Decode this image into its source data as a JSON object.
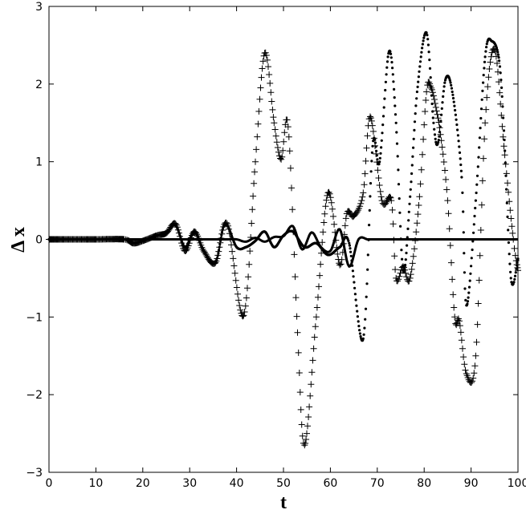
{
  "chart_data": {
    "type": "line",
    "title": "",
    "xlabel": "t",
    "ylabel": "Δ x",
    "xlim": [
      0,
      100
    ],
    "ylim": [
      -3,
      3
    ],
    "xticks": [
      0,
      10,
      20,
      30,
      40,
      50,
      60,
      70,
      80,
      90,
      100
    ],
    "yticks": [
      -3,
      -2,
      -1,
      0,
      1,
      2,
      3
    ],
    "grid": false,
    "legend": "none",
    "series": [
      {
        "style": "solid",
        "color": "#000000",
        "x": [
          0,
          10,
          15,
          18,
          20,
          22,
          24,
          26,
          28,
          30,
          32,
          34,
          36,
          38,
          40,
          42,
          44,
          46,
          48,
          50,
          52,
          54,
          56,
          58,
          60,
          62,
          64,
          66,
          68,
          70,
          72,
          74,
          76,
          78,
          80,
          82,
          84,
          86,
          88,
          90,
          92,
          94,
          96,
          98,
          100
        ],
        "y": [
          0,
          0,
          0,
          0,
          0,
          0,
          0,
          0,
          0,
          0,
          0,
          0,
          0,
          0,
          0,
          -0.03,
          0.02,
          -0.03,
          0.03,
          0.04,
          0.17,
          -0.13,
          0.09,
          -0.1,
          -0.15,
          0.13,
          -0.35,
          0.0,
          0.0,
          0.0,
          0.0,
          0.0,
          0.0,
          0.0,
          0.0,
          0.0,
          0.0,
          0.0,
          0.0,
          0.0,
          0.0,
          0.0,
          0.0,
          0.0,
          0.0
        ]
      },
      {
        "style": "dotted",
        "color": "#000000",
        "x": [
          0,
          10,
          16,
          18,
          20,
          23,
          25,
          27,
          29,
          31,
          33,
          35.5,
          37.5,
          40,
          42,
          44,
          46,
          48,
          50,
          52,
          54.5,
          57,
          59.5,
          62,
          64,
          67,
          69,
          70.5,
          72.5,
          74,
          75.5,
          77,
          78.5,
          80.5,
          82,
          83,
          84.5,
          86,
          88,
          89,
          91,
          93,
          94.5,
          96,
          97,
          98.5,
          100
        ],
        "y": [
          0,
          0,
          0,
          -0.05,
          -0.02,
          0.05,
          0.08,
          0.18,
          -0.1,
          0.1,
          -0.15,
          -0.3,
          0.2,
          -0.1,
          -0.1,
          -0.02,
          0.1,
          -0.1,
          0.05,
          0.1,
          -0.1,
          -0.05,
          -0.2,
          -0.1,
          -0.05,
          -1.28,
          1.2,
          1.0,
          2.42,
          1.5,
          -0.4,
          0.55,
          1.9,
          2.66,
          1.5,
          1.25,
          2.05,
          1.9,
          0.8,
          -0.85,
          0.5,
          2.35,
          2.55,
          2.3,
          1.4,
          -0.5,
          -0.25
        ]
      },
      {
        "style": "plus",
        "color": "#000000",
        "x": [
          0,
          10,
          16,
          18,
          20,
          23,
          25,
          27,
          29,
          31,
          33,
          35.5,
          38,
          41.5,
          44,
          46,
          48,
          49.5,
          51,
          53,
          54.5,
          57,
          59.5,
          62,
          63.5,
          65,
          67,
          68.5,
          71,
          73,
          74,
          75.5,
          77,
          79,
          80.5,
          81.5,
          82.5,
          83.5,
          85,
          86.5,
          87.5,
          89,
          91,
          93,
          95,
          97,
          99,
          100
        ],
        "y": [
          0,
          0,
          0,
          -0.05,
          -0.02,
          0.05,
          0.08,
          0.2,
          -0.15,
          0.1,
          -0.15,
          -0.3,
          0.2,
          -0.98,
          1.0,
          2.4,
          1.5,
          1.03,
          1.45,
          -1.2,
          -2.65,
          -1.0,
          0.6,
          -0.33,
          0.33,
          0.3,
          0.6,
          1.58,
          0.5,
          0.5,
          -0.5,
          -0.35,
          -0.5,
          0.55,
          1.9,
          1.95,
          1.7,
          1.35,
          0.5,
          -1.0,
          -1.05,
          -1.73,
          -1.5,
          1.5,
          2.45,
          1.2,
          0.0,
          -0.4
        ]
      }
    ]
  }
}
